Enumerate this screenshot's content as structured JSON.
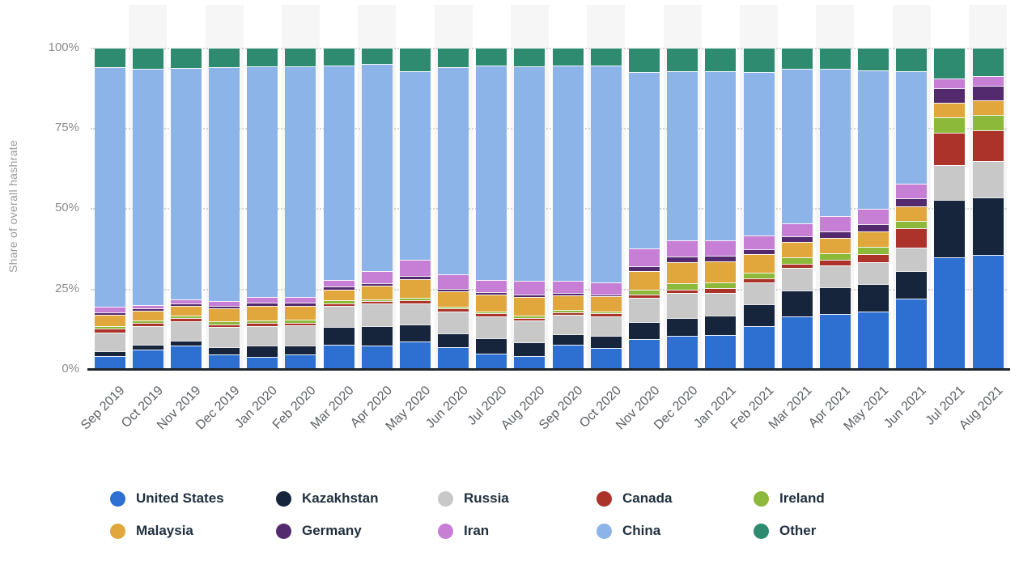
{
  "y_axis": {
    "title": "Share of overall hashrate",
    "ticks": [
      "100%",
      "75%",
      "50%",
      "25%",
      "0%"
    ]
  },
  "chart_data": {
    "type": "bar",
    "stacked": true,
    "unit": "%",
    "title": "",
    "xlabel": "",
    "ylabel": "Share of overall hashrate",
    "ylim": [
      0,
      100
    ],
    "ytick_labels": [
      "0%",
      "25%",
      "50%",
      "75%",
      "100%"
    ],
    "grid": "horizontal-dotted",
    "legend_position": "bottom",
    "background_stripes": true,
    "categories": [
      "Sep 2019",
      "Oct 2019",
      "Nov 2019",
      "Dec 2019",
      "Jan 2020",
      "Feb 2020",
      "Mar 2020",
      "Apr 2020",
      "May 2020",
      "Jun 2020",
      "Jul 2020",
      "Aug 2020",
      "Sep 2020",
      "Oct 2020",
      "Nov 2020",
      "Dec 2020",
      "Jan 2021",
      "Feb 2021",
      "Mar 2021",
      "Apr 2021",
      "May 2021",
      "Jun 2021",
      "Jul 2021",
      "Aug 2021"
    ],
    "series": [
      {
        "name": "United States",
        "color": "#2e6fd2",
        "values": [
          4.1,
          6.1,
          7.2,
          4.5,
          3.9,
          4.6,
          7.6,
          7.2,
          8.5,
          6.7,
          4.8,
          4.1,
          7.5,
          6.5,
          9.3,
          10.4,
          10.6,
          13.4,
          16.5,
          17.2,
          17.9,
          21.8,
          34.8,
          35.4
        ]
      },
      {
        "name": "Kazakhstan",
        "color": "#16243c",
        "values": [
          1.4,
          1.4,
          1.7,
          2.3,
          3.3,
          2.8,
          5.5,
          6.2,
          5.3,
          4.4,
          4.7,
          4.1,
          3.3,
          3.8,
          5.2,
          5.6,
          6.1,
          6.7,
          8.0,
          8.2,
          8.6,
          8.8,
          17.8,
          18.1
        ]
      },
      {
        "name": "Russia",
        "color": "#c8c8c8",
        "values": [
          5.9,
          5.9,
          5.9,
          6.2,
          6.2,
          6.1,
          6.5,
          6.9,
          6.6,
          6.8,
          6.8,
          6.8,
          6.0,
          6.2,
          7.6,
          7.6,
          6.9,
          6.9,
          6.9,
          6.8,
          6.8,
          7.3,
          11.0,
          11.2
        ]
      },
      {
        "name": "Canada",
        "color": "#ab332a",
        "values": [
          1.1,
          0.9,
          1.0,
          0.9,
          0.9,
          0.9,
          0.9,
          0.8,
          1.0,
          0.9,
          1.0,
          1.0,
          0.9,
          0.9,
          1.0,
          1.2,
          1.5,
          1.3,
          1.4,
          1.8,
          2.5,
          6.0,
          10.0,
          9.6
        ]
      },
      {
        "name": "Ireland",
        "color": "#8db93a",
        "values": [
          0.9,
          0.9,
          0.9,
          0.9,
          0.9,
          0.9,
          0.9,
          0.6,
          0.7,
          0.7,
          0.7,
          0.7,
          0.6,
          0.6,
          1.5,
          1.8,
          1.9,
          1.8,
          1.9,
          2.0,
          2.2,
          2.3,
          4.7,
          4.7
        ]
      },
      {
        "name": "Malaysia",
        "color": "#e1a73d",
        "values": [
          3.4,
          2.9,
          2.9,
          4.0,
          4.5,
          4.4,
          3.4,
          4.3,
          6.0,
          4.7,
          5.2,
          5.7,
          4.7,
          4.6,
          6.0,
          6.6,
          6.5,
          5.6,
          4.8,
          4.9,
          4.9,
          4.4,
          4.6,
          4.6
        ]
      },
      {
        "name": "Germany",
        "color": "#542a6e",
        "values": [
          0.9,
          0.8,
          0.8,
          0.9,
          0.9,
          0.9,
          0.9,
          0.6,
          0.8,
          0.8,
          0.8,
          0.8,
          0.7,
          0.7,
          1.5,
          1.8,
          1.9,
          1.7,
          1.8,
          2.0,
          2.3,
          2.5,
          4.5,
          4.5
        ]
      },
      {
        "name": "Iran",
        "color": "#c77fd6",
        "values": [
          1.7,
          1.1,
          1.2,
          1.6,
          1.9,
          1.8,
          2.1,
          3.8,
          5.0,
          4.6,
          3.6,
          4.4,
          3.9,
          3.7,
          5.4,
          5.0,
          4.6,
          4.1,
          4.0,
          4.6,
          4.6,
          4.5,
          3.1,
          3.1
        ]
      },
      {
        "name": "China",
        "color": "#8cb4e9",
        "values": [
          74.6,
          73.5,
          72.0,
          72.7,
          71.7,
          71.8,
          66.8,
          64.5,
          58.8,
          64.4,
          66.8,
          66.7,
          67.0,
          67.6,
          55.0,
          52.6,
          52.8,
          51.0,
          48.1,
          46.0,
          43.2,
          35.1,
          0.0,
          0.0
        ]
      },
      {
        "name": "Other",
        "color": "#2e8b70",
        "values": [
          6.0,
          6.5,
          6.4,
          6.0,
          5.8,
          5.8,
          5.4,
          5.1,
          7.3,
          6.0,
          5.6,
          5.7,
          5.4,
          5.4,
          7.5,
          7.4,
          7.2,
          7.5,
          6.6,
          6.5,
          7.0,
          7.3,
          9.5,
          8.8
        ]
      }
    ]
  }
}
